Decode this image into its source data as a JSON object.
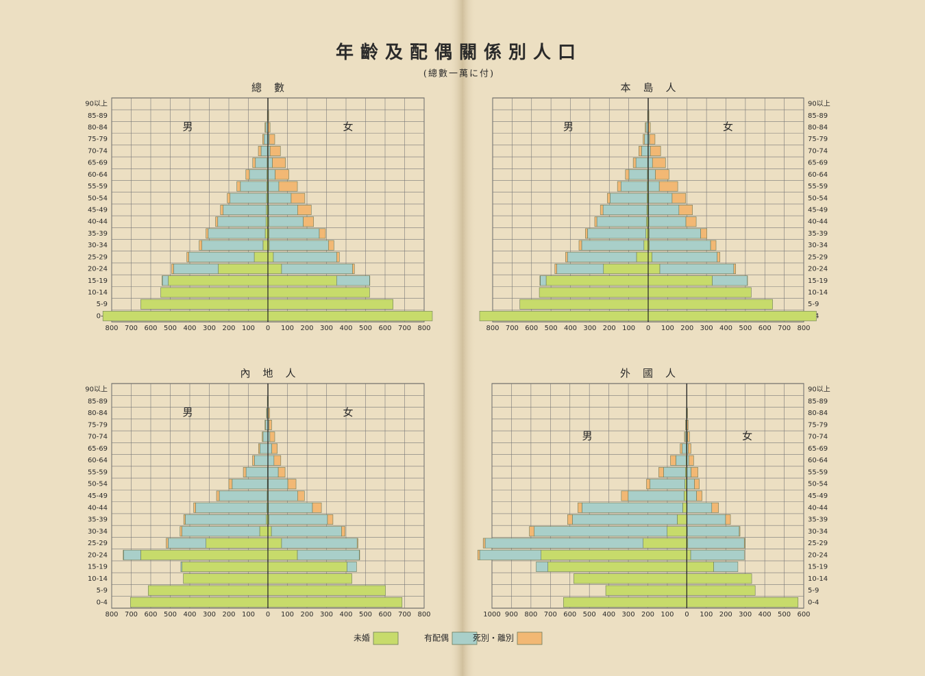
{
  "title": "年齡及配偶關係別人口",
  "subtitle": "(總數一萬に付)",
  "legend": [
    {
      "name": "未婚",
      "color": "#c7db6b"
    },
    {
      "name": "有配偶",
      "color": "#a9cfc9"
    },
    {
      "name": "死別・離別",
      "color": "#f2b874"
    }
  ],
  "chart_data": [
    {
      "type": "pyramid",
      "title": "總數",
      "male_label": "男",
      "female_label": "女",
      "label_side": "left",
      "categories": [
        "0-4",
        "5-9",
        "10-14",
        "15-19",
        "20-24",
        "25-29",
        "30-34",
        "35-39",
        "40-44",
        "45-49",
        "50-54",
        "55-59",
        "60-64",
        "65-69",
        "70-74",
        "75-79",
        "80-84",
        "85-89",
        "90以上"
      ],
      "male_xlim": [
        0,
        800
      ],
      "male_xticks": [
        0,
        100,
        200,
        300,
        400,
        500,
        600,
        700,
        800
      ],
      "female_xlim": [
        0,
        800
      ],
      "female_xticks": [
        100,
        200,
        300,
        400,
        500,
        600,
        700,
        800
      ],
      "male_series": [
        {
          "values": [
            845,
            651,
            549,
            510,
            254,
            70,
            25,
            14,
            10,
            8,
            7,
            6,
            5,
            4,
            3,
            2,
            1,
            0,
            0
          ]
        },
        {
          "values": [
            0,
            0,
            0,
            30,
            229,
            335,
            313,
            292,
            247,
            221,
            187,
            135,
            90,
            60,
            32,
            18,
            10,
            2,
            0
          ]
        },
        {
          "values": [
            0,
            0,
            0,
            2,
            10,
            10,
            14,
            11,
            11,
            14,
            14,
            18,
            18,
            14,
            14,
            7,
            4,
            1,
            1
          ]
        }
      ],
      "female_series": [
        {
          "values": [
            842,
            641,
            521,
            352,
            70,
            28,
            7,
            6,
            5,
            4,
            3,
            3,
            2,
            2,
            1,
            1,
            0,
            0,
            0
          ]
        },
        {
          "values": [
            0,
            0,
            0,
            169,
            363,
            324,
            303,
            257,
            176,
            148,
            116,
            53,
            35,
            21,
            10,
            6,
            1,
            0,
            0
          ]
        },
        {
          "values": [
            0,
            0,
            0,
            1,
            10,
            14,
            28,
            32,
            53,
            70,
            70,
            95,
            70,
            67,
            53,
            28,
            10,
            4,
            1
          ]
        }
      ]
    },
    {
      "type": "pyramid",
      "title": "本島人",
      "male_label": "男",
      "female_label": "女",
      "label_side": "right",
      "categories": [
        "0-4",
        "5-9",
        "10-14",
        "15-19",
        "20-24",
        "25-29",
        "30-34",
        "35-39",
        "40-44",
        "45-49",
        "50-54",
        "55-59",
        "60-64",
        "65-69",
        "70-74",
        "75-79",
        "80-84",
        "85-89",
        "90以上"
      ],
      "male_xlim": [
        0,
        800
      ],
      "male_xticks": [
        0,
        100,
        200,
        300,
        400,
        500,
        600,
        700,
        800
      ],
      "female_xlim": [
        0,
        800
      ],
      "female_xticks": [
        100,
        200,
        300,
        400,
        500,
        600,
        700,
        800
      ],
      "male_series": [
        {
          "values": [
            867,
            660,
            560,
            525,
            230,
            60,
            22,
            12,
            9,
            7,
            6,
            5,
            4,
            3,
            2,
            1,
            1,
            0,
            0
          ]
        },
        {
          "values": [
            0,
            0,
            0,
            30,
            240,
            355,
            320,
            300,
            255,
            225,
            190,
            135,
            95,
            60,
            32,
            18,
            10,
            2,
            0
          ]
        },
        {
          "values": [
            0,
            0,
            0,
            2,
            10,
            10,
            14,
            11,
            11,
            14,
            14,
            18,
            18,
            14,
            14,
            7,
            4,
            1,
            1
          ]
        }
      ],
      "female_series": [
        {
          "values": [
            865,
            640,
            530,
            330,
            60,
            20,
            6,
            5,
            4,
            3,
            3,
            2,
            2,
            1,
            1,
            1,
            0,
            0,
            0
          ]
        },
        {
          "values": [
            0,
            0,
            0,
            180,
            380,
            335,
            315,
            265,
            190,
            155,
            120,
            55,
            35,
            21,
            10,
            6,
            1,
            0,
            0
          ]
        },
        {
          "values": [
            0,
            0,
            0,
            1,
            10,
            14,
            28,
            32,
            53,
            70,
            70,
            95,
            70,
            67,
            53,
            28,
            10,
            4,
            1
          ]
        }
      ]
    },
    {
      "type": "pyramid",
      "title": "內地人",
      "male_label": "男",
      "female_label": "女",
      "label_side": "left",
      "categories": [
        "0-4",
        "5-9",
        "10-14",
        "15-19",
        "20-24",
        "25-29",
        "30-34",
        "35-39",
        "40-44",
        "45-49",
        "50-54",
        "55-59",
        "60-64",
        "65-69",
        "70-74",
        "75-79",
        "80-84",
        "85-89",
        "90以上"
      ],
      "male_xlim": [
        0,
        800
      ],
      "male_xticks": [
        0,
        100,
        200,
        300,
        400,
        500,
        600,
        700,
        800
      ],
      "female_xlim": [
        0,
        800
      ],
      "female_xticks": [
        100,
        200,
        300,
        400,
        500,
        600,
        700,
        800
      ],
      "male_series": [
        {
          "values": [
            704,
            613,
            433,
            440,
            651,
            317,
            42,
            8,
            5,
            4,
            3,
            2,
            1,
            1,
            1,
            0,
            0,
            0,
            0
          ]
        },
        {
          "values": [
            0,
            0,
            0,
            6,
            88,
            194,
            398,
            415,
            365,
            245,
            180,
            110,
            68,
            40,
            24,
            12,
            5,
            2,
            0
          ]
        },
        {
          "values": [
            0,
            0,
            0,
            0,
            2,
            10,
            10,
            8,
            10,
            14,
            17,
            14,
            10,
            7,
            4,
            3,
            2,
            1,
            0
          ]
        }
      ],
      "female_series": [
        {
          "values": [
            687,
            602,
            430,
            405,
            151,
            70,
            18,
            5,
            3,
            2,
            2,
            1,
            1,
            0,
            0,
            0,
            0,
            0,
            0
          ]
        },
        {
          "values": [
            0,
            0,
            0,
            49,
            317,
            387,
            359,
            300,
            225,
            150,
            100,
            52,
            30,
            20,
            10,
            5,
            2,
            0,
            0
          ]
        },
        {
          "values": [
            0,
            0,
            0,
            0,
            2,
            4,
            18,
            28,
            46,
            35,
            42,
            35,
            35,
            28,
            25,
            14,
            7,
            2,
            1
          ]
        }
      ]
    },
    {
      "type": "pyramid",
      "title": "外國人",
      "male_label": "男",
      "female_label": "女",
      "label_side": "right",
      "categories": [
        "0-4",
        "5-9",
        "10-14",
        "15-19",
        "20-24",
        "25-29",
        "30-34",
        "35-39",
        "40-44",
        "45-49",
        "50-54",
        "55-59",
        "60-64",
        "65-69",
        "70-74",
        "75-79",
        "80-84",
        "85-89",
        "90以上"
      ],
      "male_xlim": [
        0,
        1000
      ],
      "male_xticks": [
        0,
        100,
        200,
        300,
        400,
        500,
        600,
        700,
        800,
        900,
        1000
      ],
      "female_xlim": [
        0,
        600
      ],
      "female_xticks": [
        100,
        200,
        300,
        400,
        500,
        600
      ],
      "male_series": [
        {
          "values": [
            633,
            416,
            580,
            713,
            748,
            224,
            101,
            49,
            21,
            14,
            10,
            7,
            4,
            3,
            2,
            1,
            0,
            0,
            0
          ]
        },
        {
          "values": [
            0,
            0,
            0,
            60,
            315,
            811,
            682,
            538,
            517,
            287,
            179,
            112,
            52,
            21,
            6,
            3,
            2,
            1,
            0
          ]
        },
        {
          "values": [
            0,
            0,
            0,
            0,
            10,
            10,
            25,
            25,
            21,
            35,
            18,
            25,
            28,
            10,
            4,
            3,
            1,
            0,
            0
          ]
        }
      ],
      "female_series": [
        {
          "values": [
            571,
            351,
            333,
            138,
            20,
            5,
            3,
            2,
            2,
            1,
            1,
            1,
            0,
            0,
            0,
            0,
            0,
            0,
            0
          ]
        },
        {
          "values": [
            0,
            0,
            0,
            124,
            275,
            290,
            266,
            197,
            126,
            49,
            38,
            21,
            10,
            7,
            4,
            1,
            0,
            0,
            0
          ]
        },
        {
          "values": [
            0,
            0,
            0,
            0,
            0,
            4,
            4,
            25,
            35,
            28,
            25,
            35,
            25,
            14,
            10,
            6,
            4,
            1,
            0
          ]
        }
      ]
    }
  ]
}
